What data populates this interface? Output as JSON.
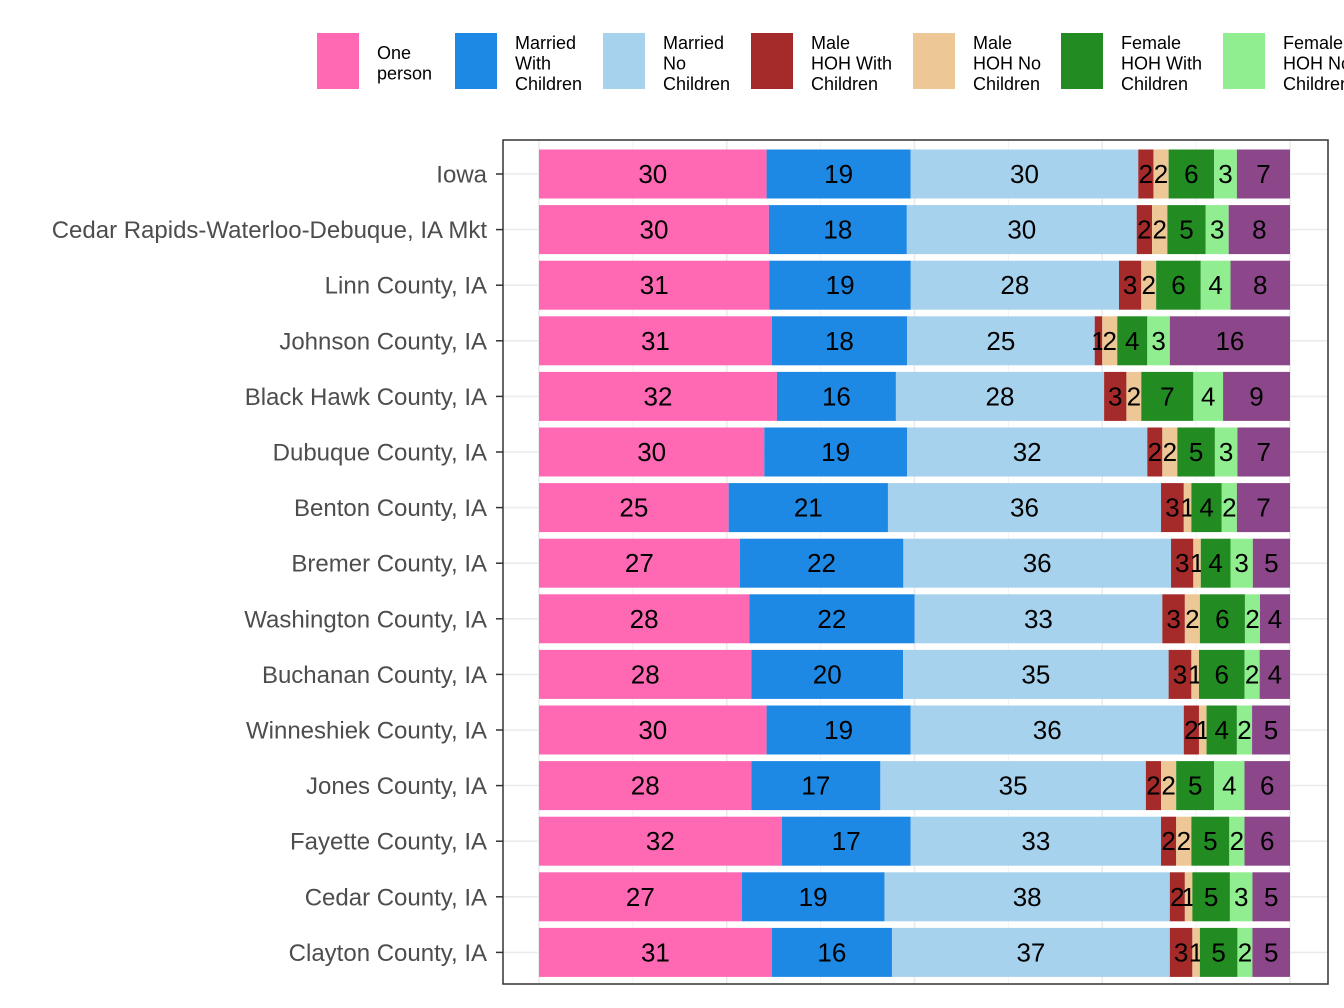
{
  "chart_data": {
    "type": "bar",
    "orientation": "horizontal",
    "stacked": true,
    "legend_position": "top",
    "grid": true,
    "xlim": [
      0,
      100
    ],
    "categories": [
      "Iowa",
      "Cedar Rapids-Waterloo-Debuque, IA Mkt",
      "Linn County, IA",
      "Johnson County, IA",
      "Black Hawk County, IA",
      "Dubuque County, IA",
      "Benton County, IA",
      "Bremer County, IA",
      "Washington County, IA",
      "Buchanan County, IA",
      "Winneshiek County, IA",
      "Jones County, IA",
      "Fayette County, IA",
      "Cedar County, IA",
      "Clayton County, IA"
    ],
    "series": [
      {
        "name": "One person",
        "legend_lines": [
          "One",
          "person"
        ],
        "color": "#ff69b4",
        "values": [
          30,
          30,
          31,
          31,
          32,
          30,
          25,
          27,
          28,
          28,
          30,
          28,
          32,
          27,
          31
        ]
      },
      {
        "name": "Married With Children",
        "legend_lines": [
          "Married",
          "With",
          "Children"
        ],
        "color": "#1e88e5",
        "values": [
          19,
          18,
          19,
          18,
          16,
          19,
          21,
          22,
          22,
          20,
          19,
          17,
          17,
          19,
          16
        ]
      },
      {
        "name": "Married No Children",
        "legend_lines": [
          "Married",
          "No",
          "Children"
        ],
        "color": "#a6d2ee",
        "values": [
          30,
          30,
          28,
          25,
          28,
          32,
          36,
          36,
          33,
          35,
          36,
          35,
          33,
          38,
          37
        ]
      },
      {
        "name": "Male HOH With Children",
        "legend_lines": [
          "Male",
          "HOH With",
          "Children"
        ],
        "color": "#a52a2a",
        "values": [
          2,
          2,
          3,
          1,
          3,
          2,
          3,
          3,
          3,
          3,
          2,
          2,
          2,
          2,
          3
        ]
      },
      {
        "name": "Male HOH No Children",
        "legend_lines": [
          "Male",
          "HOH No",
          "Children"
        ],
        "color": "#edc896",
        "values": [
          2,
          2,
          2,
          2,
          2,
          2,
          1,
          1,
          2,
          1,
          1,
          2,
          2,
          1,
          1
        ]
      },
      {
        "name": "Female HOH With Children",
        "legend_lines": [
          "Female",
          "HOH With",
          "Children"
        ],
        "color": "#228b22",
        "values": [
          6,
          5,
          6,
          4,
          7,
          5,
          4,
          4,
          6,
          6,
          4,
          5,
          5,
          5,
          5
        ]
      },
      {
        "name": "Female HOH No Children",
        "legend_lines": [
          "Female",
          "HOH No",
          "Children"
        ],
        "color": "#90ee90",
        "values": [
          3,
          3,
          4,
          3,
          4,
          3,
          2,
          3,
          2,
          2,
          2,
          4,
          2,
          3,
          2
        ]
      },
      {
        "name": "",
        "legend_lines": [],
        "color": "#8b4789",
        "values": [
          7,
          8,
          8,
          16,
          9,
          7,
          7,
          5,
          4,
          4,
          5,
          6,
          6,
          5,
          5
        ]
      }
    ]
  }
}
